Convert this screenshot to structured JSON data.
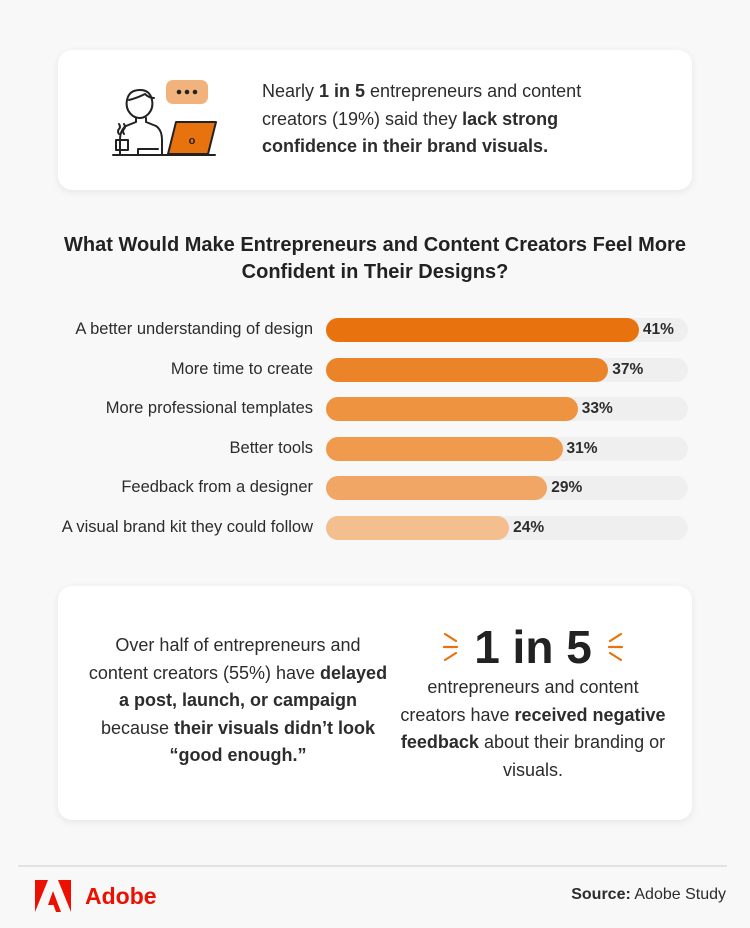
{
  "top_stat": {
    "segments": [
      {
        "text": "Nearly ",
        "bold": false
      },
      {
        "text": "1 in 5",
        "bold": true
      },
      {
        "text": " entrepreneurs and content creators (19%) said they ",
        "bold": false
      },
      {
        "text": "lack strong confidence in their brand visuals.",
        "bold": true
      }
    ],
    "icon": "person-at-laptop-with-speech-bubble-icon",
    "bubble_text": "•••",
    "laptop_text": "o"
  },
  "chart_data": {
    "type": "bar",
    "orientation": "horizontal",
    "title": "What Would Make Entrepreneurs and Content Creators Feel More Confident in Their Designs?",
    "categories": [
      "A better understanding of design",
      "More time to create",
      "More professional templates",
      "Better tools",
      "Feedback from a designer",
      "A visual brand kit they could follow"
    ],
    "values": [
      41,
      37,
      33,
      31,
      29,
      24
    ],
    "value_labels": [
      "41%",
      "37%",
      "33%",
      "31%",
      "29%",
      "24%"
    ],
    "colors": [
      "#E8730E",
      "#EB8428",
      "#EE933F",
      "#EF9A4C",
      "#F1A665",
      "#F5BE8E"
    ],
    "track_color": "#EFEFEF",
    "grid": false,
    "unit": "%"
  },
  "bottom_left": {
    "segments": [
      {
        "text": "Over half of entrepreneurs and content creators (55%) have ",
        "bold": false
      },
      {
        "text": "delayed a post, launch, or campaign",
        "bold": true
      },
      {
        "text": " because ",
        "bold": false
      },
      {
        "text": "their visuals didn’t look “good enough.”",
        "bold": true
      }
    ]
  },
  "bottom_right": {
    "big": "1 in 5",
    "segments": [
      {
        "text": "entrepreneurs and content creators have ",
        "bold": false
      },
      {
        "text": "received negative feedback",
        "bold": true
      },
      {
        "text": " about their branding or visuals.",
        "bold": false
      }
    ]
  },
  "footer": {
    "brand": "Adobe",
    "source_label": "Source:",
    "source_value": " Adobe Study"
  },
  "colors": {
    "accent": "#E8730E",
    "brand": "#EB1000"
  }
}
